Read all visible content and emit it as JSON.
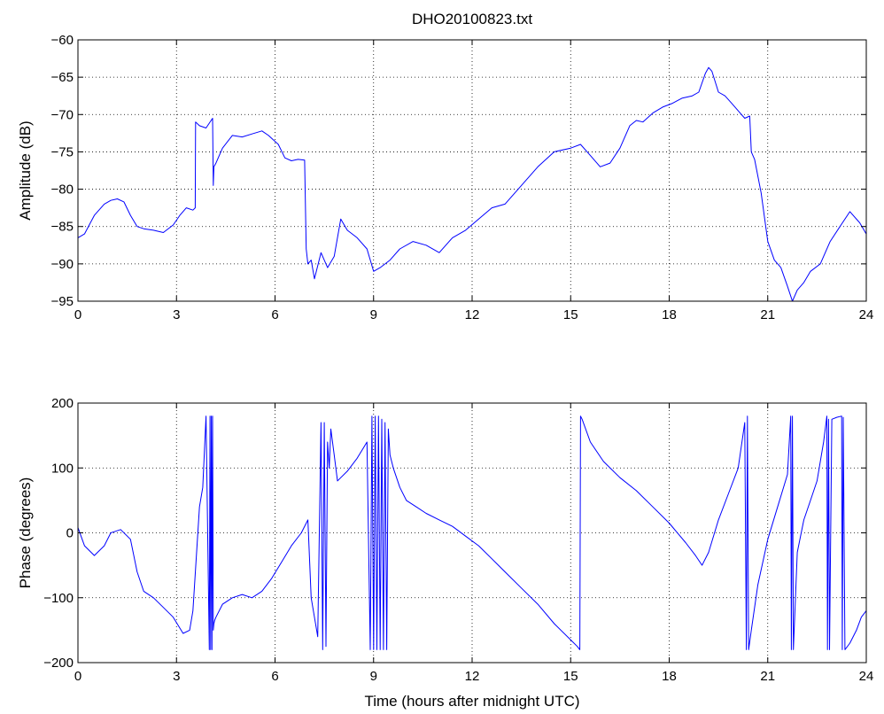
{
  "chart_data": [
    {
      "type": "line",
      "title": "DHO20100823.txt",
      "xlabel": "",
      "ylabel": "Amplitude (dB)",
      "xlim": [
        0,
        24
      ],
      "ylim": [
        -95,
        -60
      ],
      "xticks": [
        0,
        3,
        6,
        9,
        12,
        15,
        18,
        21,
        24
      ],
      "yticks": [
        -95,
        -90,
        -85,
        -80,
        -75,
        -70,
        -65,
        -60
      ],
      "grid": true,
      "series_color": "#0000ff",
      "series": [
        {
          "x": [
            0,
            0.2,
            0.5,
            0.8,
            1.0,
            1.2,
            1.4,
            1.6,
            1.8,
            2.0,
            2.3,
            2.6,
            2.9,
            3.1,
            3.3,
            3.5,
            3.57,
            3.58,
            3.7,
            3.9,
            4.1,
            4.12,
            4.14,
            4.2,
            4.4,
            4.7,
            5.0,
            5.3,
            5.6,
            5.8,
            6.1,
            6.3,
            6.5,
            6.7,
            6.9,
            6.95,
            7.0,
            7.1,
            7.2,
            7.4,
            7.6,
            7.8,
            8.0,
            8.2,
            8.5,
            8.8,
            9.0,
            9.2,
            9.5,
            9.8,
            10.2,
            10.6,
            11.0,
            11.4,
            11.8,
            12.2,
            12.6,
            13.0,
            13.5,
            14.0,
            14.5,
            15.0,
            15.3,
            15.6,
            15.9,
            16.2,
            16.5,
            16.8,
            17.0,
            17.2,
            17.5,
            17.8,
            18.1,
            18.4,
            18.7,
            18.9,
            19.1,
            19.2,
            19.3,
            19.5,
            19.7,
            19.9,
            20.1,
            20.3,
            20.45,
            20.5,
            20.6,
            20.8,
            21.0,
            21.2,
            21.4,
            21.6,
            21.75,
            21.9,
            22.1,
            22.3,
            22.6,
            22.9,
            23.2,
            23.5,
            23.8,
            24.0
          ],
          "y": [
            -86.5,
            -86.0,
            -83.5,
            -82.0,
            -81.5,
            -81.3,
            -81.7,
            -83.5,
            -85.0,
            -85.3,
            -85.5,
            -85.8,
            -84.8,
            -83.5,
            -82.5,
            -82.8,
            -82.5,
            -71.0,
            -71.5,
            -71.8,
            -70.5,
            -79.5,
            -77.0,
            -76.5,
            -74.5,
            -72.8,
            -73.0,
            -72.6,
            -72.2,
            -72.8,
            -74.0,
            -75.8,
            -76.2,
            -76.0,
            -76.1,
            -88.0,
            -90.0,
            -89.5,
            -92.0,
            -88.5,
            -90.5,
            -89.0,
            -84.0,
            -85.5,
            -86.5,
            -88.0,
            -91.0,
            -90.5,
            -89.5,
            -88.0,
            -87.0,
            -87.5,
            -88.5,
            -86.5,
            -85.5,
            -84.0,
            -82.5,
            -82.0,
            -79.5,
            -77.0,
            -75.0,
            -74.5,
            -74.0,
            -75.5,
            -77.0,
            -76.5,
            -74.5,
            -71.5,
            -70.8,
            -71.0,
            -69.8,
            -69.0,
            -68.5,
            -67.8,
            -67.5,
            -67.0,
            -64.5,
            -63.7,
            -64.2,
            -67.0,
            -67.5,
            -68.5,
            -69.5,
            -70.5,
            -70.2,
            -75.0,
            -76.0,
            -80.5,
            -87.0,
            -89.5,
            -90.5,
            -93.0,
            -95.0,
            -93.5,
            -92.5,
            -91.0,
            -90.0,
            -87.0,
            -85.0,
            -83.0,
            -84.5,
            -86.0
          ]
        }
      ]
    },
    {
      "type": "line",
      "title": "",
      "xlabel": "Time (hours after midnight UTC)",
      "ylabel": "Phase (degrees)",
      "xlim": [
        0,
        24
      ],
      "ylim": [
        -200,
        200
      ],
      "xticks": [
        0,
        3,
        6,
        9,
        12,
        15,
        18,
        21,
        24
      ],
      "yticks": [
        -200,
        -100,
        0,
        100,
        200
      ],
      "grid": true,
      "series_color": "#0000ff",
      "series": [
        {
          "x": [
            0,
            0.2,
            0.5,
            0.8,
            1.0,
            1.3,
            1.6,
            1.8,
            2.0,
            2.3,
            2.6,
            2.9,
            3.2,
            3.4,
            3.5,
            3.6,
            3.7,
            3.8,
            3.9,
            4.0,
            4.02,
            4.04,
            4.06,
            4.08,
            4.1,
            4.12,
            4.14,
            4.16,
            4.2,
            4.4,
            4.7,
            5.0,
            5.3,
            5.6,
            5.9,
            6.2,
            6.5,
            6.8,
            7.0,
            7.1,
            7.2,
            7.3,
            7.4,
            7.45,
            7.5,
            7.55,
            7.6,
            7.65,
            7.7,
            7.8,
            7.9,
            8.0,
            8.2,
            8.5,
            8.8,
            8.9,
            8.95,
            9.0,
            9.05,
            9.1,
            9.15,
            9.2,
            9.25,
            9.3,
            9.35,
            9.4,
            9.45,
            9.5,
            9.6,
            9.8,
            10.0,
            10.3,
            10.6,
            11.0,
            11.4,
            11.8,
            12.2,
            12.6,
            13.0,
            13.5,
            14.0,
            14.5,
            15.0,
            15.2,
            15.28,
            15.3,
            15.35,
            15.6,
            16.0,
            16.5,
            17.0,
            17.5,
            18.0,
            18.5,
            18.8,
            19.0,
            19.2,
            19.5,
            19.8,
            20.1,
            20.3,
            20.35,
            20.38,
            20.42,
            20.5,
            20.7,
            21.0,
            21.3,
            21.6,
            21.7,
            21.72,
            21.75,
            21.78,
            21.9,
            22.1,
            22.3,
            22.5,
            22.7,
            22.8,
            22.82,
            22.85,
            22.88,
            22.95,
            23.1,
            23.25,
            23.27,
            23.3,
            23.35,
            23.5,
            23.7,
            23.85,
            24.0
          ],
          "y": [
            8,
            -20,
            -35,
            -20,
            0,
            5,
            -10,
            -60,
            -90,
            -100,
            -115,
            -130,
            -155,
            -150,
            -120,
            -40,
            40,
            70,
            180,
            -180,
            180,
            -180,
            180,
            -180,
            180,
            -150,
            -140,
            -135,
            -130,
            -110,
            -100,
            -95,
            -100,
            -90,
            -70,
            -45,
            -20,
            0,
            20,
            -100,
            -130,
            -160,
            170,
            -180,
            170,
            -175,
            140,
            100,
            160,
            120,
            80,
            85,
            95,
            115,
            140,
            -180,
            180,
            -180,
            180,
            -180,
            180,
            -180,
            175,
            -180,
            170,
            -180,
            160,
            120,
            100,
            70,
            50,
            40,
            30,
            20,
            10,
            -5,
            -20,
            -40,
            -60,
            -85,
            -110,
            -140,
            -165,
            -175,
            -180,
            180,
            175,
            140,
            110,
            85,
            65,
            40,
            15,
            -15,
            -35,
            -50,
            -30,
            20,
            60,
            100,
            170,
            -180,
            180,
            -180,
            -150,
            -80,
            -10,
            40,
            90,
            180,
            -180,
            180,
            -180,
            -30,
            20,
            50,
            80,
            140,
            180,
            -180,
            175,
            -180,
            175,
            178,
            180,
            -180,
            178,
            -180,
            -170,
            -150,
            -130,
            -120
          ]
        }
      ]
    }
  ]
}
